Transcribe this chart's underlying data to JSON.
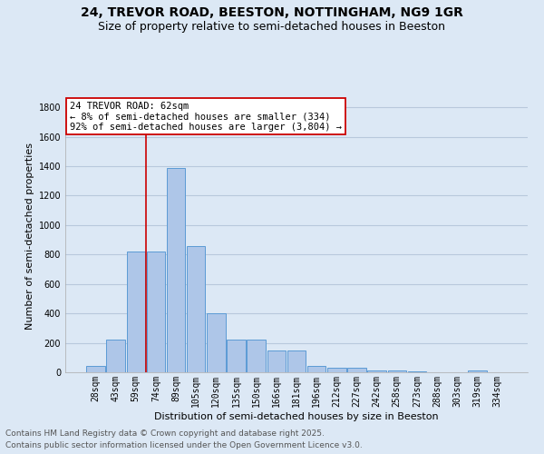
{
  "title_line1": "24, TREVOR ROAD, BEESTON, NOTTINGHAM, NG9 1GR",
  "title_line2": "Size of property relative to semi-detached houses in Beeston",
  "xlabel": "Distribution of semi-detached houses by size in Beeston",
  "ylabel": "Number of semi-detached properties",
  "categories": [
    "28sqm",
    "43sqm",
    "59sqm",
    "74sqm",
    "89sqm",
    "105sqm",
    "120sqm",
    "135sqm",
    "150sqm",
    "166sqm",
    "181sqm",
    "196sqm",
    "212sqm",
    "227sqm",
    "242sqm",
    "258sqm",
    "273sqm",
    "288sqm",
    "303sqm",
    "319sqm",
    "334sqm"
  ],
  "values": [
    45,
    220,
    820,
    820,
    1385,
    860,
    400,
    220,
    220,
    150,
    150,
    45,
    30,
    30,
    15,
    15,
    8,
    0,
    0,
    15,
    0
  ],
  "bar_color": "#aec6e8",
  "bar_edge_color": "#5b9bd5",
  "background_color": "#dce8f5",
  "grid_color": "#b8c8dc",
  "vline_color": "#cc0000",
  "vline_x_idx": 2.5,
  "annotation_text": "24 TREVOR ROAD: 62sqm\n← 8% of semi-detached houses are smaller (334)\n92% of semi-detached houses are larger (3,804) →",
  "annotation_box_color": "white",
  "annotation_box_edge": "#cc0000",
  "ylim": [
    0,
    1850
  ],
  "yticks": [
    0,
    200,
    400,
    600,
    800,
    1000,
    1200,
    1400,
    1600,
    1800
  ],
  "footer_line1": "Contains HM Land Registry data © Crown copyright and database right 2025.",
  "footer_line2": "Contains public sector information licensed under the Open Government Licence v3.0.",
  "title_fontsize": 10,
  "subtitle_fontsize": 9,
  "axis_label_fontsize": 8,
  "tick_fontsize": 7,
  "annotation_fontsize": 7.5,
  "footer_fontsize": 6.5
}
